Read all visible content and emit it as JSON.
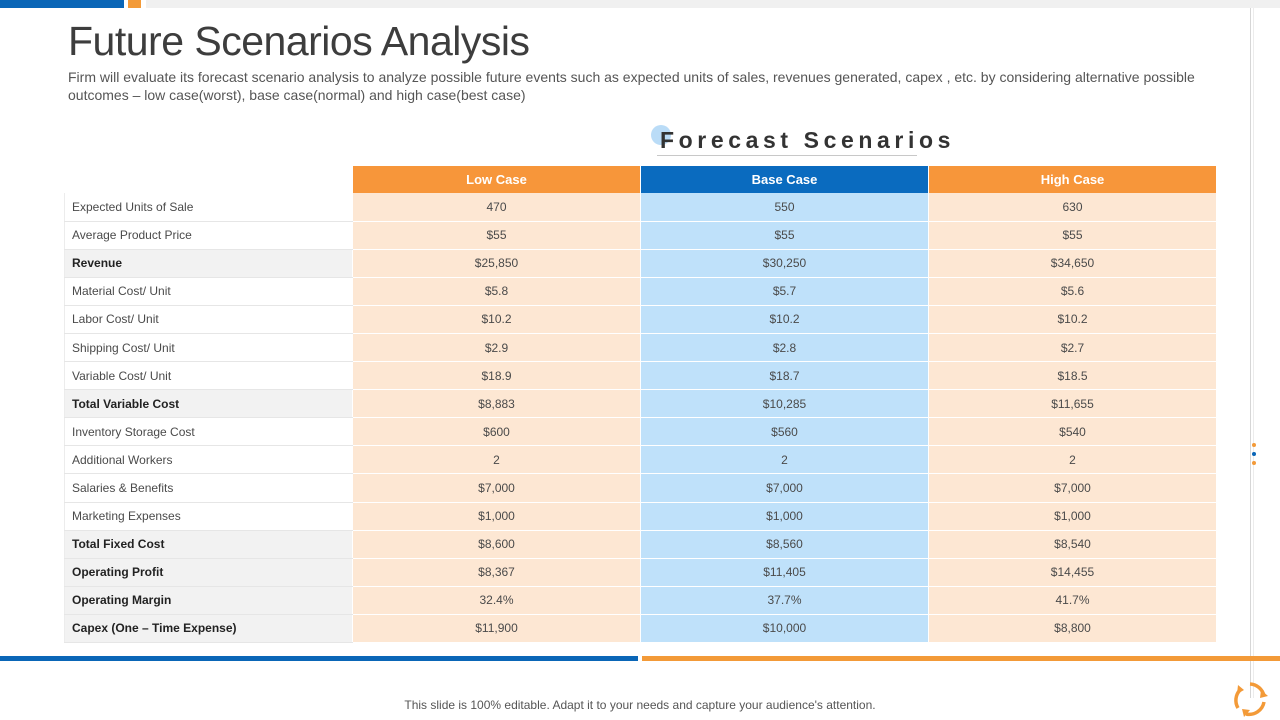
{
  "title": "Future Scenarios Analysis",
  "subtitle": "Firm will evaluate its forecast scenario analysis to analyze possible future events such as expected units of sales, revenues generated, capex , etc. by considering alternative possible outcomes – low case(worst), base case(normal) and high case(best case)",
  "forecast_heading": "Forecast Scenarios",
  "table": {
    "headers": [
      "Low Case",
      "Base Case",
      "High Case"
    ],
    "rows": [
      {
        "label": "Expected Units of Sale",
        "bold": false,
        "values": [
          "470",
          "550",
          "630"
        ]
      },
      {
        "label": "Average Product Price",
        "bold": false,
        "values": [
          "$55",
          "$55",
          "$55"
        ]
      },
      {
        "label": "Revenue",
        "bold": true,
        "values": [
          "$25,850",
          "$30,250",
          "$34,650"
        ]
      },
      {
        "label": "Material Cost/ Unit",
        "bold": false,
        "values": [
          "$5.8",
          "$5.7",
          "$5.6"
        ]
      },
      {
        "label": "Labor Cost/ Unit",
        "bold": false,
        "values": [
          "$10.2",
          "$10.2",
          "$10.2"
        ]
      },
      {
        "label": "Shipping Cost/ Unit",
        "bold": false,
        "values": [
          "$2.9",
          "$2.8",
          "$2.7"
        ]
      },
      {
        "label": "Variable Cost/ Unit",
        "bold": false,
        "values": [
          "$18.9",
          "$18.7",
          "$18.5"
        ]
      },
      {
        "label": "Total Variable Cost",
        "bold": true,
        "values": [
          "$8,883",
          "$10,285",
          "$11,655"
        ]
      },
      {
        "label": "Inventory Storage Cost",
        "bold": false,
        "values": [
          "$600",
          "$560",
          "$540"
        ]
      },
      {
        "label": "Additional Workers",
        "bold": false,
        "values": [
          "2",
          "2",
          "2"
        ]
      },
      {
        "label": "Salaries & Benefits",
        "bold": false,
        "values": [
          "$7,000",
          "$7,000",
          "$7,000"
        ]
      },
      {
        "label": "Marketing Expenses",
        "bold": false,
        "values": [
          "$1,000",
          "$1,000",
          "$1,000"
        ]
      },
      {
        "label": "Total Fixed Cost",
        "bold": true,
        "values": [
          "$8,600",
          "$8,560",
          "$8,540"
        ]
      },
      {
        "label": "Operating Profit",
        "bold": true,
        "values": [
          "$8,367",
          "$11,405",
          "$14,455"
        ]
      },
      {
        "label": "Operating Margin",
        "bold": true,
        "values": [
          "32.4%",
          "37.7%",
          "41.7%"
        ]
      },
      {
        "label": "Capex (One – Time Expense)",
        "bold": true,
        "values": [
          "$11,900",
          "$10,000",
          "$8,800"
        ]
      }
    ]
  },
  "footer_note": "This slide is 100% editable. Adapt it to your needs and capture your audience's attention.",
  "colors": {
    "accent_blue": "#0a66b7",
    "accent_orange": "#f39a38",
    "low_fill": "#fde7d3",
    "base_fill": "#bfe1fa",
    "high_fill": "#fde7d3"
  },
  "icons": {
    "side_dots": "vertical-dots-icon",
    "logo": "recycle-arrows-logo-icon"
  }
}
